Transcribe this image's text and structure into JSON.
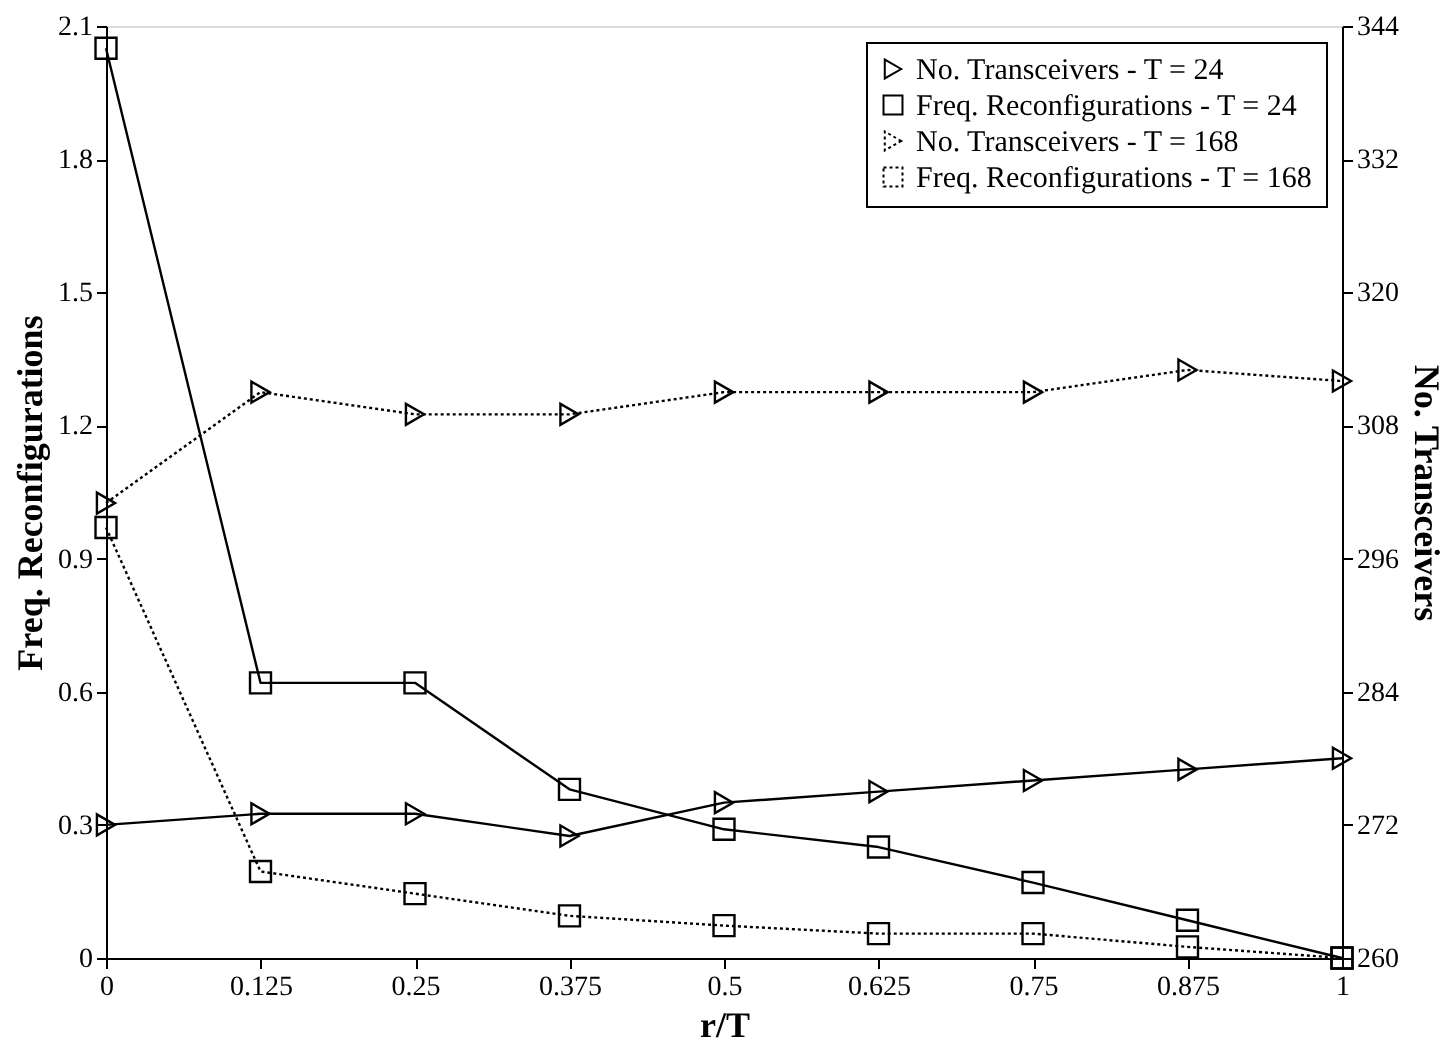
{
  "chart_data": {
    "type": "line",
    "xlabel": "r/T",
    "ylabel": "Freq. Reconfigurations",
    "y2label": "No. Transceivers",
    "x": [
      0,
      0.125,
      0.25,
      0.375,
      0.5,
      0.625,
      0.75,
      0.875,
      1
    ],
    "xlim": [
      0,
      1
    ],
    "xticks": [
      0,
      0.125,
      0.25,
      0.375,
      0.5,
      0.625,
      0.75,
      0.875,
      1
    ],
    "ylim": [
      0,
      2.1
    ],
    "yticks": [
      0,
      0.3,
      0.6,
      0.9,
      1.2,
      1.5,
      1.8,
      2.1
    ],
    "y2lim": [
      260,
      344
    ],
    "y2ticks": [
      260,
      272,
      284,
      296,
      308,
      320,
      332,
      344
    ],
    "grid": false,
    "legend": "top right",
    "series": [
      {
        "name": "No. Transceivers - T = 24",
        "color": "#000000",
        "axis": "y2",
        "marker": "triangle",
        "line_style": "solid",
        "values": [
          272,
          273,
          273,
          271,
          274,
          275,
          276,
          277,
          278
        ]
      },
      {
        "name": "Freq. Reconfigurations - T = 24",
        "color": "#000000",
        "marker": "square",
        "line_style": "solid",
        "values": [
          2.05,
          0.62,
          0.62,
          0.38,
          0.29,
          0.25,
          0.17,
          0.085,
          0
        ]
      },
      {
        "name": "No. Transceivers - T = 168",
        "color": "#000000",
        "axis": "y2",
        "marker": "triangle",
        "line_style": "dotted",
        "values": [
          301,
          311,
          309,
          309,
          311,
          311,
          311,
          313,
          312
        ]
      },
      {
        "name": "Freq. Reconfigurations - T = 168",
        "color": "#000000",
        "marker": "square",
        "line_style": "dotted",
        "values": [
          0.97,
          0.195,
          0.145,
          0.095,
          0.073,
          0.055,
          0.055,
          0.025,
          0
        ]
      }
    ]
  }
}
